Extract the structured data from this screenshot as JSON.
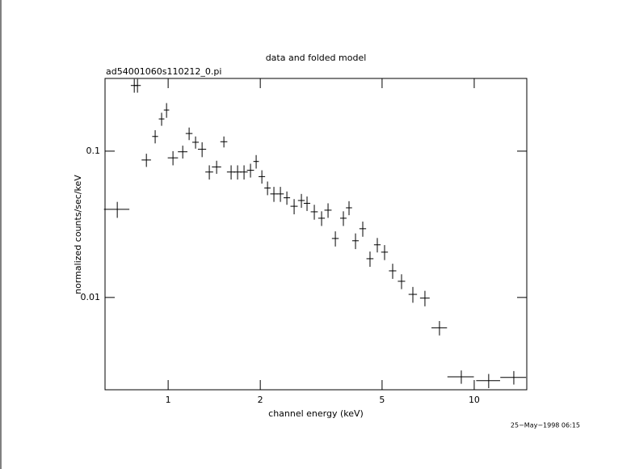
{
  "chart_data": {
    "type": "errorbar",
    "title": "data and folded model",
    "subtitle": "ad54001060s110212_0.pi",
    "x_label": "channel energy (keV)",
    "y_label": "normalized counts/sec/keV",
    "timestamp": "25−May−1998 06:15",
    "xscale": "log",
    "yscale": "log",
    "xlim": [
      0.622,
      14.85
    ],
    "ylim": [
      0.00234,
      0.314
    ],
    "xticks": [
      1,
      2,
      5,
      10
    ],
    "yticks": [
      0.01,
      0.1
    ],
    "color": "#000000",
    "x": [
      0.682,
      0.775,
      0.794,
      0.849,
      0.907,
      0.952,
      0.988,
      1.037,
      1.116,
      1.171,
      1.229,
      1.291,
      1.363,
      1.44,
      1.521,
      1.606,
      1.686,
      1.77,
      1.858,
      1.939,
      2.024,
      2.112,
      2.216,
      2.327,
      2.443,
      2.58,
      2.725,
      2.843,
      3.003,
      3.172,
      3.33,
      3.518,
      3.737,
      3.899,
      4.094,
      4.324,
      4.566,
      4.824,
      5.095,
      5.414,
      5.788,
      6.303,
      6.902,
      7.7,
      9.074,
      11.15,
      13.47
    ],
    "xerr": [
      0.065,
      0.02,
      0.02,
      0.03,
      0.02,
      0.02,
      0.02,
      0.04,
      0.04,
      0.03,
      0.03,
      0.04,
      0.04,
      0.05,
      0.04,
      0.05,
      0.05,
      0.05,
      0.05,
      0.04,
      0.05,
      0.05,
      0.06,
      0.06,
      0.06,
      0.07,
      0.07,
      0.07,
      0.08,
      0.08,
      0.09,
      0.09,
      0.09,
      0.09,
      0.1,
      0.11,
      0.12,
      0.12,
      0.13,
      0.15,
      0.16,
      0.2,
      0.25,
      0.45,
      0.9,
      1.0,
      1.3
    ],
    "values": [
      0.04,
      0.281,
      0.281,
      0.087,
      0.126,
      0.166,
      0.191,
      0.09,
      0.099,
      0.132,
      0.115,
      0.103,
      0.072,
      0.078,
      0.116,
      0.072,
      0.072,
      0.072,
      0.074,
      0.085,
      0.067,
      0.056,
      0.051,
      0.051,
      0.048,
      0.042,
      0.046,
      0.044,
      0.0385,
      0.0348,
      0.0395,
      0.0253,
      0.0348,
      0.041,
      0.0244,
      0.0295,
      0.0184,
      0.0229,
      0.0204,
      0.0152,
      0.0129,
      0.0105,
      0.0099,
      0.0062,
      0.00287,
      0.0027,
      0.00284
    ],
    "yerr": [
      0.005,
      0.03,
      0.03,
      0.009,
      0.013,
      0.017,
      0.022,
      0.01,
      0.01,
      0.013,
      0.011,
      0.012,
      0.008,
      0.008,
      0.01,
      0.008,
      0.008,
      0.008,
      0.008,
      0.009,
      0.007,
      0.006,
      0.006,
      0.006,
      0.005,
      0.005,
      0.005,
      0.005,
      0.0045,
      0.004,
      0.0045,
      0.003,
      0.004,
      0.0045,
      0.003,
      0.0035,
      0.0022,
      0.0026,
      0.0024,
      0.0018,
      0.0015,
      0.0013,
      0.0012,
      0.0007,
      0.0003,
      0.0003,
      0.0003
    ]
  }
}
